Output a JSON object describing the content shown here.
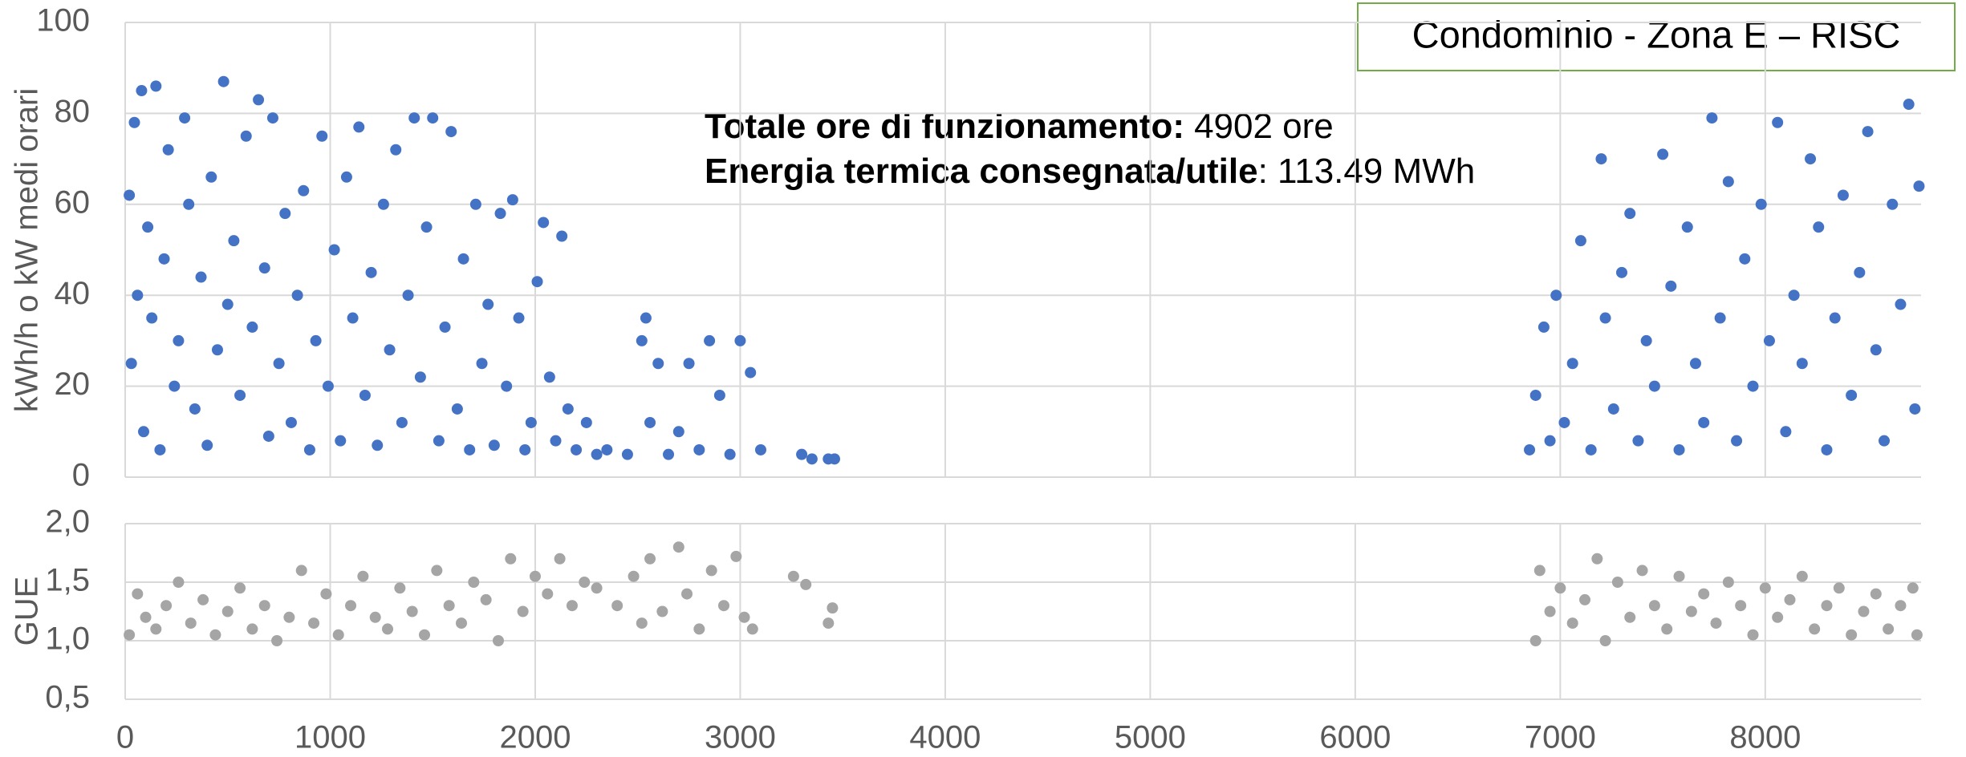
{
  "chart_data": [
    {
      "type": "scatter",
      "y_label": "kWh/h o kW medi orari",
      "annotations": [
        {
          "bold": "Totale ore di funzionamento:",
          "text": "4902 ore"
        },
        {
          "bold": "Energia termica consegnata/utile",
          "text": ": 113.49 MWh"
        }
      ],
      "legend_box": "Condominio - Zona E – RISC",
      "xlim": [
        0,
        8760
      ],
      "ylim": [
        0,
        100
      ],
      "yticks": [
        0,
        20,
        40,
        60,
        80,
        100
      ],
      "grid": true,
      "series": [
        {
          "name": "kWh/h",
          "color": "#4472c4",
          "x": [
            20,
            30,
            45,
            60,
            80,
            90,
            110,
            130,
            150,
            170,
            190,
            210,
            240,
            260,
            290,
            310,
            340,
            370,
            400,
            420,
            450,
            480,
            500,
            530,
            560,
            590,
            620,
            650,
            680,
            700,
            720,
            750,
            780,
            810,
            840,
            870,
            900,
            930,
            960,
            990,
            1020,
            1050,
            1080,
            1110,
            1140,
            1170,
            1200,
            1230,
            1260,
            1290,
            1320,
            1350,
            1380,
            1410,
            1440,
            1470,
            1500,
            1530,
            1560,
            1590,
            1620,
            1650,
            1680,
            1710,
            1740,
            1770,
            1800,
            1830,
            1860,
            1890,
            1920,
            1950,
            1980,
            2010,
            2040,
            2070,
            2100,
            2130,
            2160,
            2200,
            2250,
            2300,
            2350,
            2450,
            2520,
            2540,
            2560,
            2600,
            2650,
            2700,
            2750,
            2800,
            2850,
            2900,
            2950,
            3000,
            3050,
            3100,
            3300,
            3350,
            3430,
            3460,
            6850,
            6880,
            6920,
            6950,
            6980,
            7020,
            7060,
            7100,
            7150,
            7200,
            7220,
            7260,
            7300,
            7340,
            7380,
            7420,
            7460,
            7500,
            7540,
            7580,
            7620,
            7660,
            7700,
            7740,
            7780,
            7820,
            7860,
            7900,
            7940,
            7980,
            8020,
            8060,
            8100,
            8140,
            8180,
            8220,
            8260,
            8300,
            8340,
            8380,
            8420,
            8460,
            8500,
            8540,
            8580,
            8620,
            8660,
            8700,
            8730,
            8750
          ],
          "values": [
            62,
            25,
            78,
            40,
            85,
            10,
            55,
            35,
            86,
            6,
            48,
            72,
            20,
            30,
            79,
            60,
            15,
            44,
            7,
            66,
            28,
            87,
            38,
            52,
            18,
            75,
            33,
            83,
            46,
            9,
            79,
            25,
            58,
            12,
            40,
            63,
            6,
            30,
            75,
            20,
            50,
            8,
            66,
            35,
            77,
            18,
            45,
            7,
            60,
            28,
            72,
            12,
            40,
            79,
            22,
            55,
            79,
            8,
            33,
            76,
            15,
            48,
            6,
            60,
            25,
            38,
            7,
            58,
            20,
            61,
            35,
            6,
            12,
            43,
            56,
            22,
            8,
            53,
            15,
            6,
            12,
            5,
            6,
            5,
            30,
            35,
            12,
            25,
            5,
            10,
            25,
            6,
            30,
            18,
            5,
            30,
            23,
            6,
            5,
            4,
            4,
            4,
            6,
            18,
            33,
            8,
            40,
            12,
            25,
            52,
            6,
            70,
            35,
            15,
            45,
            58,
            8,
            30,
            20,
            71,
            42,
            6,
            55,
            25,
            12,
            79,
            35,
            65,
            8,
            48,
            20,
            60,
            30,
            78,
            10,
            40,
            25,
            70,
            55,
            6,
            35,
            62,
            18,
            45,
            76,
            28,
            8,
            60,
            38,
            82,
            15,
            64
          ]
        }
      ]
    },
    {
      "type": "scatter",
      "y_label": "GUE",
      "xlim": [
        0,
        8760
      ],
      "ylim": [
        0.5,
        2.0
      ],
      "yticks": [
        {
          "value": 0.5,
          "label": "0,5"
        },
        {
          "value": 1.0,
          "label": "1,0"
        },
        {
          "value": 1.5,
          "label": "1,5"
        },
        {
          "value": 2.0,
          "label": "2,0"
        }
      ],
      "xticks": [
        0,
        1000,
        2000,
        3000,
        4000,
        5000,
        6000,
        7000,
        8000
      ],
      "grid": true,
      "series": [
        {
          "name": "GUE",
          "color": "#a5a5a5",
          "x": [
            20,
            60,
            100,
            150,
            200,
            260,
            320,
            380,
            440,
            500,
            560,
            620,
            680,
            740,
            800,
            860,
            920,
            980,
            1040,
            1100,
            1160,
            1220,
            1280,
            1340,
            1400,
            1460,
            1520,
            1580,
            1640,
            1700,
            1760,
            1820,
            1880,
            1940,
            2000,
            2060,
            2120,
            2180,
            2240,
            2300,
            2400,
            2480,
            2520,
            2560,
            2620,
            2700,
            2740,
            2800,
            2860,
            2920,
            2980,
            3020,
            3060,
            3260,
            3320,
            3430,
            3450,
            6880,
            6900,
            6950,
            7000,
            7060,
            7120,
            7180,
            7220,
            7280,
            7340,
            7400,
            7460,
            7520,
            7580,
            7640,
            7700,
            7760,
            7820,
            7880,
            7940,
            8000,
            8060,
            8120,
            8180,
            8240,
            8300,
            8360,
            8420,
            8480,
            8540,
            8600,
            8660,
            8720,
            8740
          ],
          "values": [
            1.05,
            1.4,
            1.2,
            1.1,
            1.3,
            1.5,
            1.15,
            1.35,
            1.05,
            1.25,
            1.45,
            1.1,
            1.3,
            1.0,
            1.2,
            1.6,
            1.15,
            1.4,
            1.05,
            1.3,
            1.55,
            1.2,
            1.1,
            1.45,
            1.25,
            1.05,
            1.6,
            1.3,
            1.15,
            1.5,
            1.35,
            1.0,
            1.7,
            1.25,
            1.55,
            1.4,
            1.7,
            1.3,
            1.5,
            1.45,
            1.3,
            1.55,
            1.15,
            1.7,
            1.25,
            1.8,
            1.4,
            1.1,
            1.6,
            1.3,
            1.72,
            1.2,
            1.1,
            1.55,
            1.48,
            1.15,
            1.28,
            1.0,
            1.6,
            1.25,
            1.45,
            1.15,
            1.35,
            1.7,
            1.0,
            1.5,
            1.2,
            1.6,
            1.3,
            1.1,
            1.55,
            1.25,
            1.4,
            1.15,
            1.5,
            1.3,
            1.05,
            1.45,
            1.2,
            1.35,
            1.55,
            1.1,
            1.3,
            1.45,
            1.05,
            1.25,
            1.4,
            1.1,
            1.3,
            1.45,
            1.05
          ]
        }
      ]
    }
  ]
}
